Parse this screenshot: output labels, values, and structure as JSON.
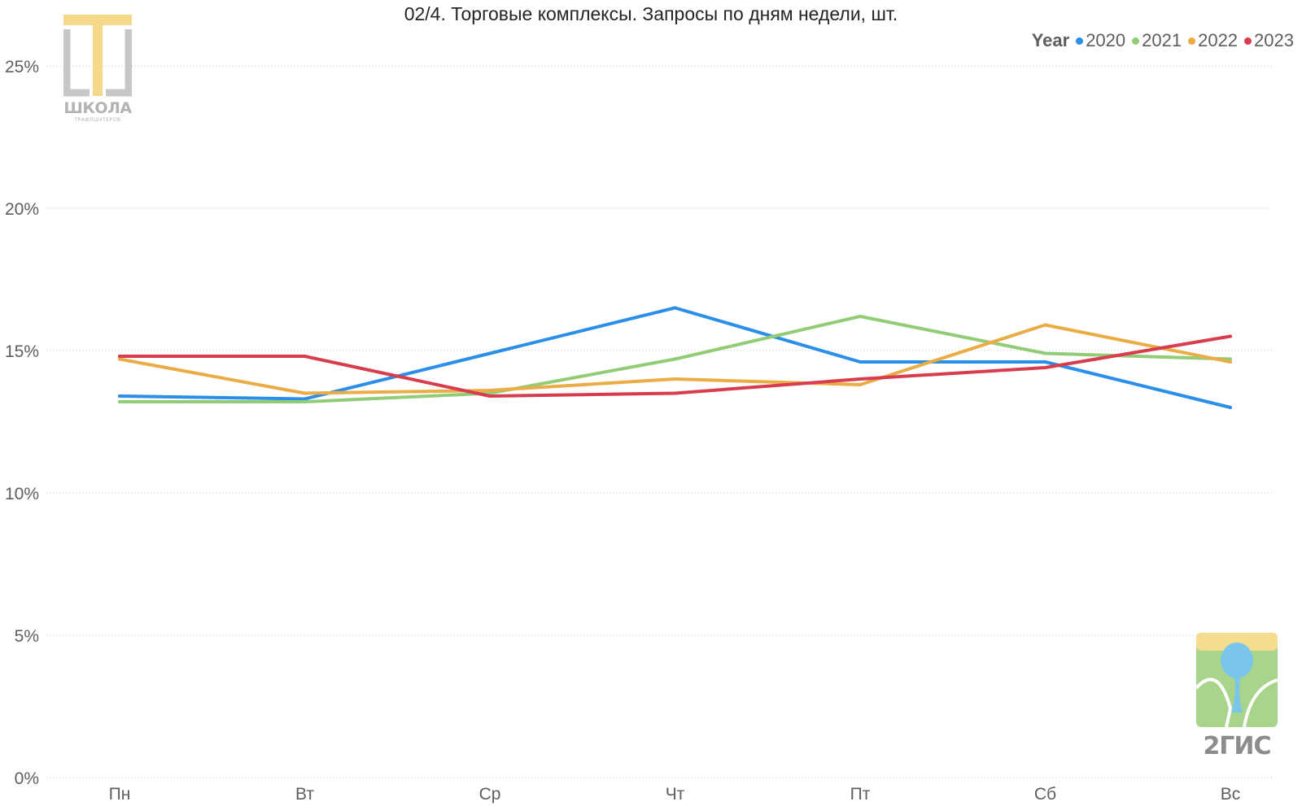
{
  "chart_data": {
    "type": "line",
    "title": "02/4. Торговые комплексы. Запросы по дням недели, шт.",
    "xlabel": "",
    "ylabel": "",
    "categories": [
      "Пн",
      "Вт",
      "Ср",
      "Чт",
      "Пт",
      "Сб",
      "Вс"
    ],
    "ylim": [
      0,
      26
    ],
    "yticks": [
      0,
      5,
      10,
      15,
      20,
      25
    ],
    "ytick_labels": [
      "0%",
      "5%",
      "10%",
      "15%",
      "20%",
      "25%"
    ],
    "grid": true,
    "legend": {
      "title": "Year",
      "position": "top-right"
    },
    "series": [
      {
        "name": "2020",
        "color": "#2b8fe8",
        "values": [
          13.4,
          13.3,
          14.9,
          16.5,
          14.6,
          14.6,
          13.0
        ]
      },
      {
        "name": "2021",
        "color": "#93cc76",
        "values": [
          13.2,
          13.2,
          13.5,
          14.7,
          16.2,
          14.9,
          14.7
        ]
      },
      {
        "name": "2022",
        "color": "#eaac44",
        "values": [
          14.7,
          13.5,
          13.6,
          14.0,
          13.8,
          15.9,
          14.6
        ]
      },
      {
        "name": "2023",
        "color": "#d73d4d",
        "values": [
          14.8,
          14.8,
          13.4,
          13.5,
          14.0,
          14.4,
          15.5
        ]
      }
    ]
  },
  "logos": {
    "school": {
      "name": "school-logo",
      "text": "ШКОЛА",
      "subtext": "ТРАФЛШУТЕРОВ"
    },
    "gis": {
      "name": "2gis-logo",
      "text": "2ГИС"
    }
  }
}
